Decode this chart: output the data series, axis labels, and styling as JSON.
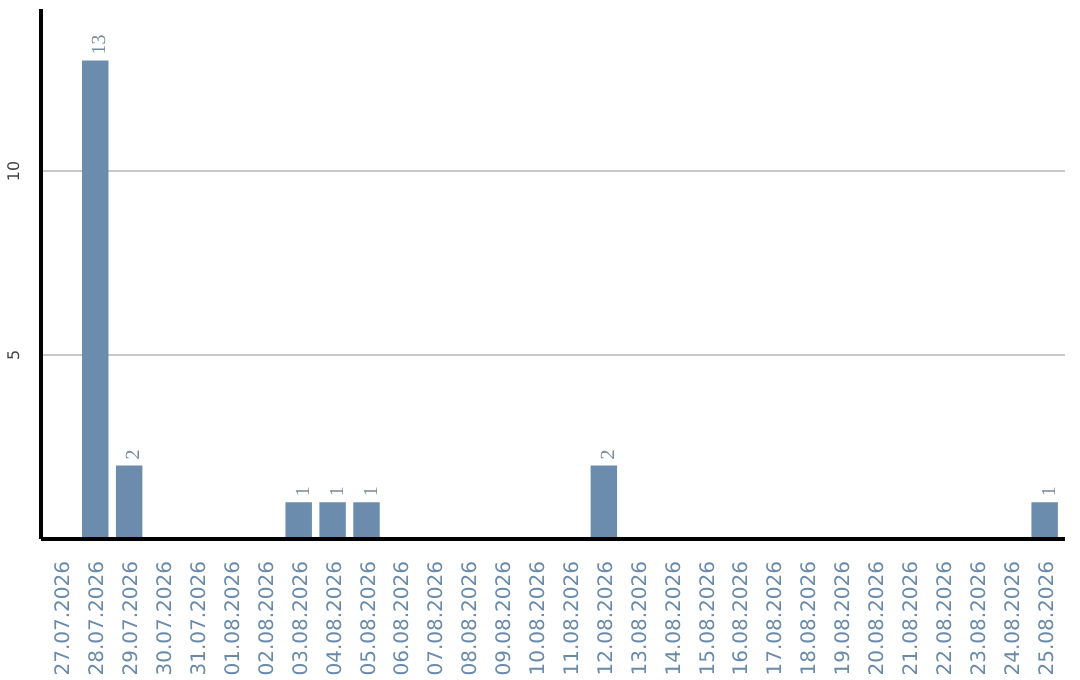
{
  "chart_data": {
    "type": "bar",
    "categories": [
      "27.07.2026",
      "28.07.2026",
      "29.07.2026",
      "30.07.2026",
      "31.07.2026",
      "01.08.2026",
      "02.08.2026",
      "03.08.2026",
      "04.08.2026",
      "05.08.2026",
      "06.08.2026",
      "07.08.2026",
      "08.08.2026",
      "09.08.2026",
      "10.08.2026",
      "11.08.2026",
      "12.08.2026",
      "13.08.2026",
      "14.08.2026",
      "15.08.2026",
      "16.08.2026",
      "17.08.2026",
      "18.08.2026",
      "19.08.2026",
      "20.08.2026",
      "21.08.2026",
      "22.08.2026",
      "23.08.2026",
      "24.08.2026",
      "25.08.2026"
    ],
    "values": [
      0,
      13,
      2,
      0,
      0,
      0,
      0,
      1,
      1,
      1,
      0,
      0,
      0,
      0,
      0,
      0,
      2,
      0,
      0,
      0,
      0,
      0,
      0,
      0,
      0,
      0,
      0,
      0,
      0,
      1
    ],
    "value_labels": [
      null,
      "13",
      "2",
      null,
      null,
      null,
      null,
      "1",
      "1",
      "1",
      null,
      null,
      null,
      null,
      null,
      null,
      "2",
      null,
      null,
      null,
      null,
      null,
      null,
      null,
      null,
      null,
      null,
      null,
      null,
      "1"
    ],
    "color": "#6b8cac",
    "ylim": [
      0,
      14.4
    ],
    "yticks": [
      5,
      10
    ],
    "grid": "y"
  }
}
